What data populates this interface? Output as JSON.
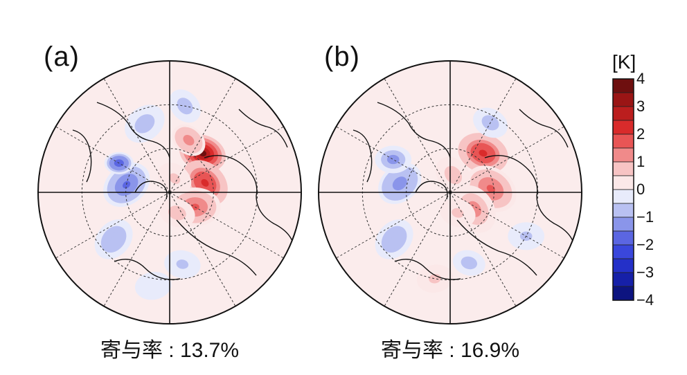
{
  "chart_data": [
    {
      "type": "heatmap",
      "panel_label": "(a)",
      "caption": "寄与率 : 13.7%",
      "projection": "north polar stereographic",
      "unit": "[K]",
      "anomalies": [
        {
          "lat": 55,
          "lon": 140,
          "radius_deg": 13,
          "value": 3.5
        },
        {
          "lat": 65,
          "lon": 105,
          "radius_deg": 14,
          "value": 2.2
        },
        {
          "lat": 70,
          "lon": 60,
          "radius_deg": 14,
          "value": 1.5
        },
        {
          "lat": 75,
          "lon": 20,
          "radius_deg": 10,
          "value": 0.8
        },
        {
          "lat": 52,
          "lon": 160,
          "radius_deg": 10,
          "value": 1.4
        },
        {
          "lat": 80,
          "lon": 160,
          "radius_deg": 10,
          "value": 0.7
        },
        {
          "lat": 60,
          "lon": -100,
          "radius_deg": 14,
          "value": -1.6
        },
        {
          "lat": 50,
          "lon": -120,
          "radius_deg": 8,
          "value": -2.0
        },
        {
          "lat": 40,
          "lon": -160,
          "radius_deg": 12,
          "value": -0.9
        },
        {
          "lat": 40,
          "lon": -50,
          "radius_deg": 12,
          "value": -1.0
        },
        {
          "lat": 40,
          "lon": 10,
          "radius_deg": 10,
          "value": -0.7
        },
        {
          "lat": 30,
          "lon": 170,
          "radius_deg": 10,
          "value": -0.8
        },
        {
          "lat": 25,
          "lon": -10,
          "radius_deg": 10,
          "value": -0.5
        }
      ]
    },
    {
      "type": "heatmap",
      "panel_label": "(b)",
      "caption": "寄与率 : 16.9%",
      "projection": "north polar stereographic",
      "unit": "[K]",
      "anomalies": [
        {
          "lat": 55,
          "lon": 140,
          "radius_deg": 14,
          "value": 2.2
        },
        {
          "lat": 62,
          "lon": 95,
          "radius_deg": 15,
          "value": 1.6
        },
        {
          "lat": 70,
          "lon": 55,
          "radius_deg": 14,
          "value": 1.2
        },
        {
          "lat": 78,
          "lon": 170,
          "radius_deg": 11,
          "value": 0.8
        },
        {
          "lat": 75,
          "lon": 20,
          "radius_deg": 10,
          "value": 0.6
        },
        {
          "lat": 55,
          "lon": -100,
          "radius_deg": 13,
          "value": -1.4
        },
        {
          "lat": 45,
          "lon": -120,
          "radius_deg": 10,
          "value": -1.2
        },
        {
          "lat": 40,
          "lon": -50,
          "radius_deg": 12,
          "value": -1.0
        },
        {
          "lat": 35,
          "lon": 150,
          "radius_deg": 10,
          "value": -0.8
        },
        {
          "lat": 40,
          "lon": 15,
          "radius_deg": 9,
          "value": -0.8
        },
        {
          "lat": 30,
          "lon": -10,
          "radius_deg": 10,
          "value": 0.6
        },
        {
          "lat": 30,
          "lon": 60,
          "radius_deg": 10,
          "value": -0.6
        }
      ]
    }
  ],
  "colorbar": {
    "unit": "[K]",
    "ticks": [
      "4",
      "3",
      "2",
      "1",
      "0",
      "−1",
      "−2",
      "−3",
      "−4"
    ],
    "levels": [
      {
        "value": 3.5,
        "color": "#6e0f0f"
      },
      {
        "value": 3.0,
        "color": "#9a1515"
      },
      {
        "value": 2.5,
        "color": "#bb1e1e"
      },
      {
        "value": 2.0,
        "color": "#d92b2b"
      },
      {
        "value": 1.5,
        "color": "#e85555"
      },
      {
        "value": 1.0,
        "color": "#f08a8a"
      },
      {
        "value": 0.5,
        "color": "#f7c4c4"
      },
      {
        "value": 0.0,
        "color": "#fbe8e8"
      },
      {
        "value": -0.5,
        "color": "#e8ebfb"
      },
      {
        "value": -1.0,
        "color": "#b9c1f2"
      },
      {
        "value": -1.5,
        "color": "#8a95ea"
      },
      {
        "value": -2.0,
        "color": "#5b66e2"
      },
      {
        "value": -2.5,
        "color": "#3a47dc"
      },
      {
        "value": -3.0,
        "color": "#2430c8"
      },
      {
        "value": -3.5,
        "color": "#1620a8"
      },
      {
        "value": -4.0,
        "color": "#0d1480"
      }
    ]
  }
}
